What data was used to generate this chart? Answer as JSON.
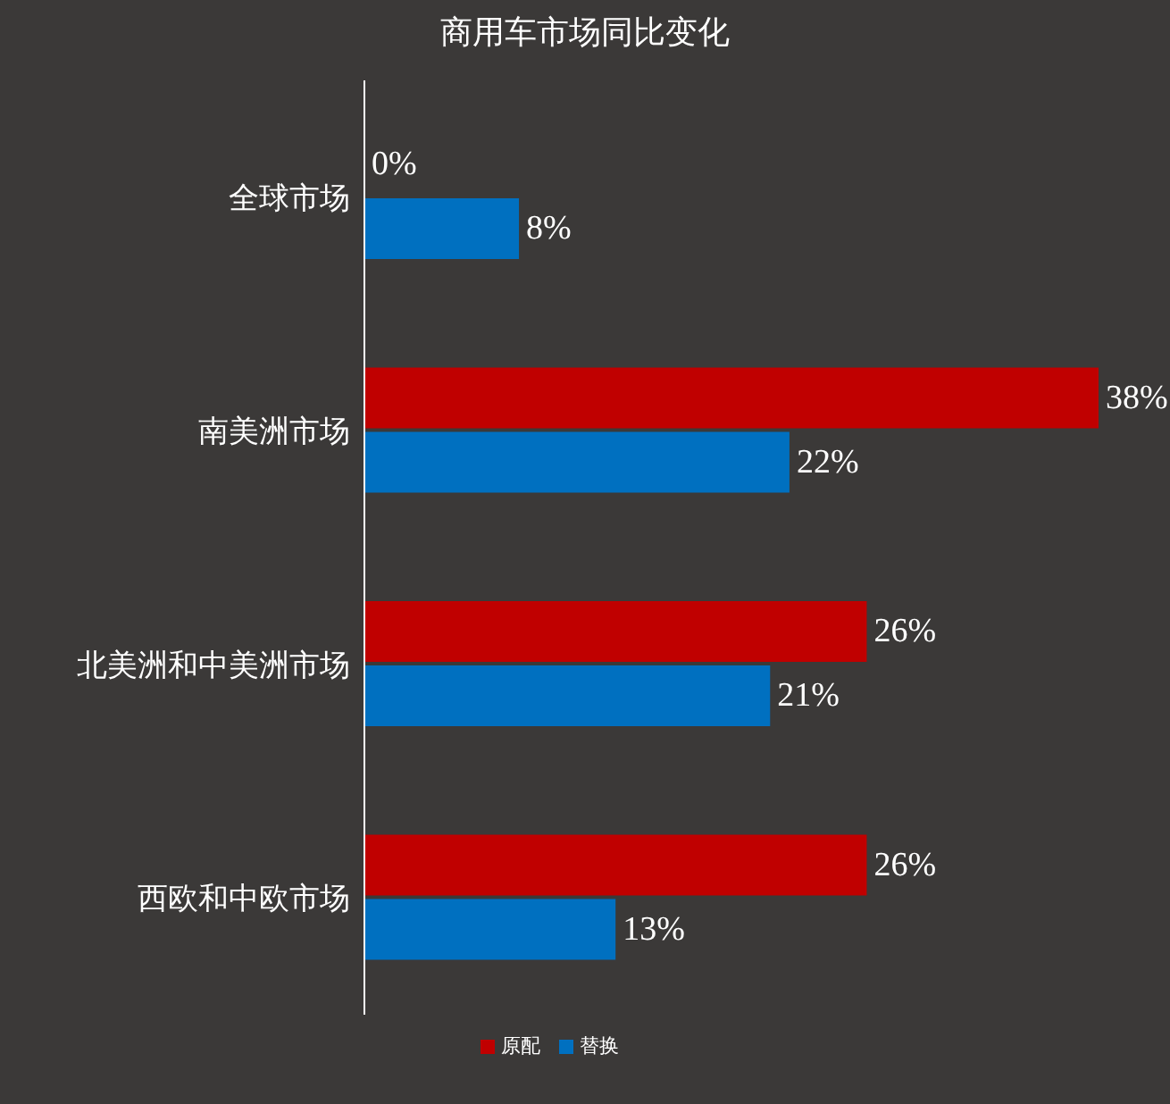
{
  "chart_data": {
    "type": "bar",
    "orientation": "horizontal",
    "title": "商用车市场同比变化",
    "categories": [
      "全球市场",
      "南美洲市场",
      "北美洲和中美洲市场",
      "西欧和中欧市场"
    ],
    "series": [
      {
        "name": "原配",
        "color": "#c00000",
        "values": [
          0,
          38,
          26,
          26
        ],
        "value_labels": [
          "0%",
          "38%",
          "26%",
          "26%"
        ]
      },
      {
        "name": "替换",
        "color": "#0070c0",
        "values": [
          8,
          22,
          21,
          13
        ],
        "value_labels": [
          "8%",
          "22%",
          "21%",
          "13%"
        ]
      }
    ],
    "legend": "bottom",
    "grid": false,
    "tick_labels": "y"
  }
}
